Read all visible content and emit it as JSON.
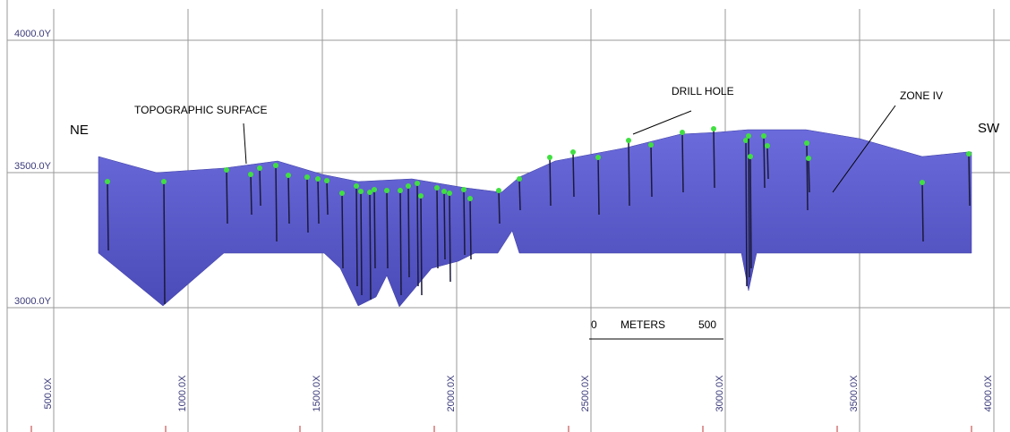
{
  "y_labels": [
    "4000.0Y",
    "3500.0Y",
    "3000.0Y"
  ],
  "x_labels": [
    "500.0X",
    "1000.0X",
    "1500.0X",
    "2000.0X",
    "2500.0X",
    "3000.0X",
    "3500.0X",
    "4000.0X"
  ],
  "annotations": {
    "ne": "NE",
    "sw": "SW",
    "topographic_surface": "TOPOGRAPHIC SURFACE",
    "drill_hole": "DRILL HOLE",
    "zone": "ZONE IV"
  },
  "scale_bar": {
    "start": "0",
    "unit": "METERS",
    "end": "500"
  }
}
